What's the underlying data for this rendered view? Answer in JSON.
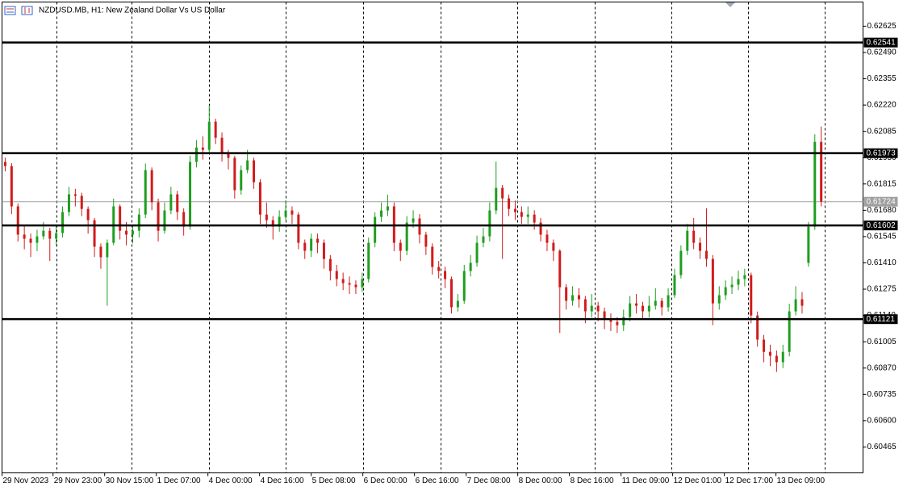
{
  "chart_data": {
    "type": "candlestick",
    "title": "NZDUSD.MB, H1:  New Zealand Dollar Vs US Dollar",
    "up_color": "#1f9e1f",
    "down_color": "#d01c1c",
    "xlim": [
      -0.5,
      134.56
    ],
    "ylim": [
      0.60332,
      0.62749
    ],
    "xticks": [
      {
        "value": -0.5,
        "label": "29 Nov 2023"
      },
      {
        "value": 7.5,
        "label": "29 Nov 23:00"
      },
      {
        "value": 15.6,
        "label": "30 Nov 15:00"
      },
      {
        "value": 23.7,
        "label": "1 Dec 07:00"
      },
      {
        "value": 31.8,
        "label": "4 Dec 00:00"
      },
      {
        "value": 39.9,
        "label": "4 Dec 16:00"
      },
      {
        "value": 48.0,
        "label": "5 Dec 08:00"
      },
      {
        "value": 56.1,
        "label": "6 Dec 00:00"
      },
      {
        "value": 64.2,
        "label": "6 Dec 16:00"
      },
      {
        "value": 72.3,
        "label": "7 Dec 08:00"
      },
      {
        "value": 80.4,
        "label": "8 Dec 00:00"
      },
      {
        "value": 88.5,
        "label": "8 Dec 16:00"
      },
      {
        "value": 96.6,
        "label": "11 Dec 09:00"
      },
      {
        "value": 104.7,
        "label": "12 Dec 01:00"
      },
      {
        "value": 112.8,
        "label": "12 Dec 17:00"
      },
      {
        "value": 120.9,
        "label": "13 Dec 09:00"
      }
    ],
    "yticks": [
      0.62625,
      {
        "value": 0.6249,
        "label": "0.62490"
      },
      0.62355,
      {
        "value": 0.6222,
        "label": "0.62220"
      },
      0.62085,
      {
        "value": 0.6195,
        "label": "0.61950"
      },
      0.61815,
      {
        "value": 0.6168,
        "label": "0.61680"
      },
      0.61545,
      {
        "value": 0.6141,
        "label": "0.61410"
      },
      0.61275,
      {
        "value": 0.6114,
        "label": "0.61140"
      },
      0.61005,
      {
        "value": 0.6087,
        "label": "0.60870"
      },
      0.60735,
      {
        "value": 0.606,
        "label": "0.60600"
      },
      0.60465
    ],
    "levels": [
      0.62541,
      0.61973,
      0.61602,
      0.61121
    ],
    "current_price": 0.61724,
    "open": [
      0.61928,
      0.61907,
      0.617,
      0.61555,
      0.61534,
      0.61513,
      0.61546,
      0.61575,
      0.61534,
      0.61563,
      0.61671,
      0.61762,
      0.61754,
      0.61687,
      0.61629,
      0.61493,
      0.61439,
      0.61513,
      0.617,
      0.61575,
      0.61555,
      0.61575,
      0.61658,
      0.61886,
      0.61721,
      0.61575,
      0.61679,
      0.61762,
      0.61671,
      0.61596,
      0.61928,
      0.62002,
      0.6199,
      0.62135,
      0.62052,
      0.61969,
      0.61949,
      0.61783,
      0.61886,
      0.61936,
      0.61824,
      0.61658,
      0.61629,
      0.61596,
      0.61646,
      0.61679,
      0.61658,
      0.61513,
      0.61472,
      0.61534,
      0.61513,
      0.6143,
      0.61368,
      0.61327,
      0.61306,
      0.61298,
      0.61285,
      0.61327,
      0.61513,
      0.61646,
      0.61679,
      0.617,
      0.61513,
      0.61472,
      0.61617,
      0.61638,
      0.61555,
      0.61493,
      0.61389,
      0.61368,
      0.61327,
      0.61182,
      0.61215,
      0.61368,
      0.6141,
      0.61513,
      0.61546,
      0.61679,
      0.61795,
      0.61741,
      0.61687,
      0.61671,
      0.61646,
      0.61658,
      0.61617,
      0.61555,
      0.61513,
      0.61472,
      0.61285,
      0.61215,
      0.61244,
      0.61223,
      0.61161,
      0.6119,
      0.61161,
      0.61119,
      0.61107,
      0.6109,
      0.61132,
      0.61202,
      0.6119,
      0.61161,
      0.6119,
      0.61215,
      0.61182,
      0.61244,
      0.61347,
      0.61472,
      0.61575,
      0.61513,
      0.61472,
      0.6143,
      0.61202,
      0.61244,
      0.61285,
      0.61298,
      0.61327,
      0.61347,
      0.6114,
      0.61016,
      0.60953,
      0.60933,
      0.609,
      0.60953,
      0.61161,
      0.61223,
      0.6141,
      0.61596,
      0.62031
    ],
    "high": [
      0.6195,
      0.61922,
      0.61715,
      0.616,
      0.6156,
      0.6158,
      0.6162,
      0.6159,
      0.616,
      0.617,
      0.618,
      0.6179,
      0.6177,
      0.617,
      0.6164,
      0.6151,
      0.6153,
      0.6174,
      0.6171,
      0.6162,
      0.616,
      0.6169,
      0.6192,
      0.619,
      0.6174,
      0.6172,
      0.618,
      0.6178,
      0.6169,
      0.6196,
      0.6204,
      0.6206,
      0.62218,
      0.6215,
      0.6208,
      0.6199,
      0.6196,
      0.6191,
      0.6199,
      0.6195,
      0.6184,
      0.6172,
      0.6165,
      0.6168,
      0.6173,
      0.617,
      0.6167,
      0.6153,
      0.6156,
      0.6156,
      0.6153,
      0.6145,
      0.614,
      0.6136,
      0.6134,
      0.6132,
      0.6136,
      0.6154,
      0.6167,
      0.6172,
      0.6176,
      0.6172,
      0.6153,
      0.6165,
      0.6168,
      0.6166,
      0.6157,
      0.6151,
      0.6142,
      0.6139,
      0.6134,
      0.6125,
      0.614,
      0.6145,
      0.6155,
      0.6159,
      0.6172,
      0.6193,
      0.6181,
      0.6176,
      0.6173,
      0.617,
      0.617,
      0.6168,
      0.6164,
      0.6158,
      0.6153,
      0.6148,
      0.613,
      0.6129,
      0.6128,
      0.6124,
      0.6125,
      0.6121,
      0.6118,
      0.6115,
      0.6113,
      0.6117,
      0.6124,
      0.6125,
      0.6121,
      0.6124,
      0.6128,
      0.6123,
      0.6128,
      0.6138,
      0.615,
      0.6161,
      0.6164,
      0.6154,
      0.6169,
      0.6145,
      0.6129,
      0.6132,
      0.6134,
      0.6137,
      0.6138,
      0.6136,
      0.6116,
      0.6104,
      0.6099,
      0.6096,
      0.6099,
      0.612,
      0.6129,
      0.6126,
      0.6162,
      0.6207,
      0.6211
    ],
    "low": [
      0.6188,
      0.6166,
      0.6152,
      0.6148,
      0.6144,
      0.6147,
      0.6153,
      0.6142,
      0.615,
      0.6154,
      0.6165,
      0.617,
      0.6165,
      0.6156,
      0.6144,
      0.6138,
      0.6119,
      0.615,
      0.6153,
      0.615,
      0.6151,
      0.6154,
      0.6164,
      0.6168,
      0.6152,
      0.6156,
      0.6166,
      0.6163,
      0.6155,
      0.6158,
      0.619,
      0.6194,
      0.6197,
      0.6202,
      0.6193,
      0.6189,
      0.6174,
      0.6176,
      0.6187,
      0.6179,
      0.6161,
      0.6159,
      0.6153,
      0.6157,
      0.6163,
      0.6161,
      0.6148,
      0.6143,
      0.6144,
      0.6146,
      0.6138,
      0.6132,
      0.6129,
      0.6127,
      0.6125,
      0.6125,
      0.6126,
      0.6131,
      0.6149,
      0.6162,
      0.6165,
      0.6147,
      0.6142,
      0.6145,
      0.6159,
      0.6151,
      0.6145,
      0.6135,
      0.6133,
      0.6128,
      0.6115,
      0.6116,
      0.612,
      0.6134,
      0.6139,
      0.6149,
      0.6152,
      0.6166,
      0.6143,
      0.6165,
      0.6163,
      0.6161,
      0.6161,
      0.6158,
      0.6152,
      0.6147,
      0.6142,
      0.6105,
      0.6117,
      0.6119,
      0.6118,
      0.611,
      0.6113,
      0.6111,
      0.6107,
      0.6106,
      0.6105,
      0.6106,
      0.6111,
      0.6115,
      0.6112,
      0.6113,
      0.6117,
      0.6114,
      0.6116,
      0.6123,
      0.6133,
      0.6145,
      0.6148,
      0.6143,
      0.6139,
      0.6109,
      0.6117,
      0.6122,
      0.6125,
      0.6127,
      0.6129,
      0.611,
      0.6098,
      0.609,
      0.6088,
      0.6085,
      0.6087,
      0.6093,
      0.6114,
      0.6115,
      0.6139,
      0.6158,
      0.617
    ],
    "close": [
      0.61907,
      0.617,
      0.61555,
      0.61534,
      0.61513,
      0.61546,
      0.61575,
      0.61534,
      0.61563,
      0.61671,
      0.61762,
      0.61754,
      0.61687,
      0.61629,
      0.61493,
      0.61439,
      0.61513,
      0.617,
      0.61575,
      0.61555,
      0.61575,
      0.61658,
      0.61886,
      0.61721,
      0.61575,
      0.61679,
      0.61762,
      0.61671,
      0.61596,
      0.61928,
      0.62002,
      0.6199,
      0.62135,
      0.62052,
      0.61969,
      0.61949,
      0.61783,
      0.61886,
      0.61936,
      0.61824,
      0.61658,
      0.61629,
      0.61596,
      0.61646,
      0.61679,
      0.61658,
      0.61513,
      0.61472,
      0.61534,
      0.61513,
      0.6143,
      0.61368,
      0.61327,
      0.61306,
      0.61298,
      0.61285,
      0.61327,
      0.61513,
      0.61646,
      0.61679,
      0.617,
      0.61513,
      0.61472,
      0.61617,
      0.61638,
      0.61555,
      0.61493,
      0.61389,
      0.61368,
      0.61327,
      0.61182,
      0.61215,
      0.61368,
      0.6141,
      0.61513,
      0.61546,
      0.61679,
      0.61795,
      0.61741,
      0.61687,
      0.61671,
      0.61646,
      0.61658,
      0.61617,
      0.61555,
      0.61513,
      0.61472,
      0.61285,
      0.61215,
      0.61244,
      0.61223,
      0.61161,
      0.6119,
      0.61161,
      0.61119,
      0.61107,
      0.6109,
      0.61132,
      0.61202,
      0.6119,
      0.61161,
      0.6119,
      0.61215,
      0.61182,
      0.61244,
      0.61347,
      0.61472,
      0.61575,
      0.61513,
      0.61472,
      0.6143,
      0.61202,
      0.61244,
      0.61285,
      0.61298,
      0.61327,
      0.61347,
      0.6114,
      0.61016,
      0.60953,
      0.60933,
      0.609,
      0.60953,
      0.61161,
      0.61223,
      0.6119,
      0.61596,
      0.62031,
      0.61724
    ]
  }
}
